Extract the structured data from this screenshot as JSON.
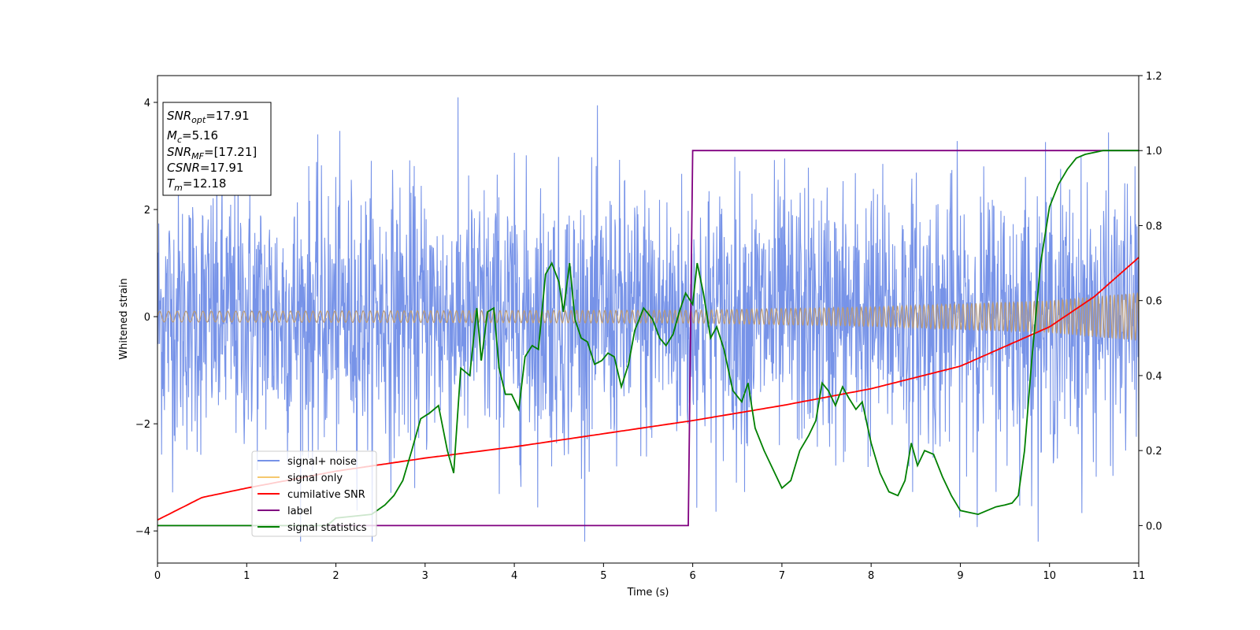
{
  "chart_data": {
    "type": "line",
    "xlabel": "Time (s)",
    "ylabel": "Whitened strain",
    "xlim": [
      0,
      11
    ],
    "ylim_left": [
      -4.6,
      4.5
    ],
    "ylim_right": [
      -0.1,
      1.2
    ],
    "x_ticks": [
      0,
      1,
      2,
      3,
      4,
      5,
      6,
      7,
      8,
      9,
      10,
      11
    ],
    "x_tick_labels": [
      "0",
      "1",
      "2",
      "3",
      "4",
      "5",
      "6",
      "7",
      "8",
      "9",
      "10",
      "11"
    ],
    "y_left_ticks": [
      -4,
      -2,
      0,
      2,
      4
    ],
    "y_left_tick_labels": [
      "−4",
      "−2",
      "0",
      "2",
      "4"
    ],
    "y_right_ticks": [
      0.0,
      0.2,
      0.4,
      0.6,
      0.8,
      1.0,
      1.2
    ],
    "y_right_tick_labels": [
      "0.0",
      "0.2",
      "0.4",
      "0.6",
      "0.8",
      "1.0",
      "1.2"
    ],
    "colors": {
      "signal_noise": "#7793e8",
      "signal_only": "#f5c86e",
      "overlap": "#b99a78",
      "cumulative_snr": "#ff0000",
      "label": "#800080",
      "signal_statistics": "#008000"
    },
    "info_box": {
      "snr_opt": {
        "main": "SNR",
        "sub": "opt",
        "value": "=17.91"
      },
      "mc": {
        "main": "M",
        "sub": "c",
        "value": "=5.16"
      },
      "snr_mf": {
        "main": "SNR",
        "sub": "MF",
        "value": "=[17.21]"
      },
      "csnr": {
        "main": "CSNR",
        "value": "=17.91"
      },
      "tm": {
        "main": "T",
        "sub": "m",
        "value": "=12.18"
      }
    },
    "legend": {
      "location": "lower-left",
      "items": [
        "signal+ noise",
        "signal only",
        "cumilative SNR",
        "label",
        "signal statistics"
      ]
    },
    "series": [
      {
        "name": "signal+ noise",
        "axis": "left",
        "description": "whitened noisy strain, roughly +/-4 around zero",
        "noise_std": 1.0,
        "range": [
          -4.2,
          4.1
        ]
      },
      {
        "name": "signal only",
        "axis": "left",
        "amplitude_envelope": {
          "x": [
            0,
            6,
            8,
            10,
            11
          ],
          "y": [
            0.1,
            0.12,
            0.18,
            0.3,
            0.45
          ]
        }
      },
      {
        "name": "cumilative SNR",
        "axis": "right",
        "x": [
          0,
          0.5,
          1,
          2,
          3,
          4,
          5,
          6,
          7,
          8,
          9,
          10,
          10.5,
          11
        ],
        "y": [
          0.015,
          0.075,
          0.1,
          0.145,
          0.18,
          0.21,
          0.245,
          0.28,
          0.32,
          0.365,
          0.425,
          0.53,
          0.61,
          0.715
        ]
      },
      {
        "name": "label",
        "axis": "right",
        "x": [
          0,
          5.95,
          6.0,
          11
        ],
        "y": [
          0.0,
          0.0,
          1.0,
          1.0
        ]
      },
      {
        "name": "signal statistics",
        "axis": "right",
        "x": [
          0,
          1.9,
          2.0,
          2.2,
          2.4,
          2.55,
          2.65,
          2.75,
          2.85,
          2.95,
          3.05,
          3.15,
          3.25,
          3.32,
          3.4,
          3.5,
          3.58,
          3.63,
          3.7,
          3.77,
          3.83,
          3.9,
          3.97,
          4.05,
          4.12,
          4.2,
          4.27,
          4.35,
          4.42,
          4.5,
          4.55,
          4.62,
          4.68,
          4.75,
          4.82,
          4.9,
          4.98,
          5.05,
          5.12,
          5.2,
          5.28,
          5.35,
          5.45,
          5.55,
          5.63,
          5.7,
          5.78,
          5.85,
          5.92,
          6.0,
          6.05,
          6.12,
          6.2,
          6.27,
          6.35,
          6.45,
          6.55,
          6.62,
          6.7,
          6.8,
          6.9,
          7.0,
          7.1,
          7.2,
          7.3,
          7.38,
          7.45,
          7.52,
          7.6,
          7.68,
          7.75,
          7.83,
          7.9,
          8.0,
          8.1,
          8.2,
          8.3,
          8.38,
          8.45,
          8.52,
          8.6,
          8.7,
          8.8,
          8.9,
          9.0,
          9.1,
          9.2,
          9.3,
          9.4,
          9.5,
          9.58,
          9.65,
          9.72,
          9.8,
          9.9,
          10.0,
          10.1,
          10.2,
          10.3,
          10.4,
          10.6,
          10.8,
          11.0
        ],
        "y": [
          0.0,
          0.0,
          0.02,
          0.025,
          0.03,
          0.055,
          0.08,
          0.12,
          0.2,
          0.285,
          0.3,
          0.32,
          0.2,
          0.14,
          0.42,
          0.4,
          0.58,
          0.44,
          0.57,
          0.58,
          0.42,
          0.35,
          0.35,
          0.31,
          0.45,
          0.48,
          0.47,
          0.67,
          0.7,
          0.65,
          0.57,
          0.7,
          0.55,
          0.5,
          0.49,
          0.43,
          0.44,
          0.46,
          0.45,
          0.37,
          0.43,
          0.52,
          0.58,
          0.55,
          0.5,
          0.48,
          0.51,
          0.57,
          0.62,
          0.59,
          0.7,
          0.62,
          0.5,
          0.53,
          0.47,
          0.36,
          0.33,
          0.38,
          0.26,
          0.2,
          0.15,
          0.1,
          0.12,
          0.2,
          0.24,
          0.28,
          0.38,
          0.36,
          0.32,
          0.37,
          0.34,
          0.31,
          0.33,
          0.22,
          0.14,
          0.09,
          0.08,
          0.12,
          0.22,
          0.16,
          0.2,
          0.19,
          0.13,
          0.08,
          0.04,
          0.035,
          0.03,
          0.04,
          0.05,
          0.055,
          0.06,
          0.08,
          0.2,
          0.44,
          0.7,
          0.85,
          0.91,
          0.95,
          0.98,
          0.99,
          1.0,
          1.0,
          1.0
        ]
      }
    ]
  }
}
